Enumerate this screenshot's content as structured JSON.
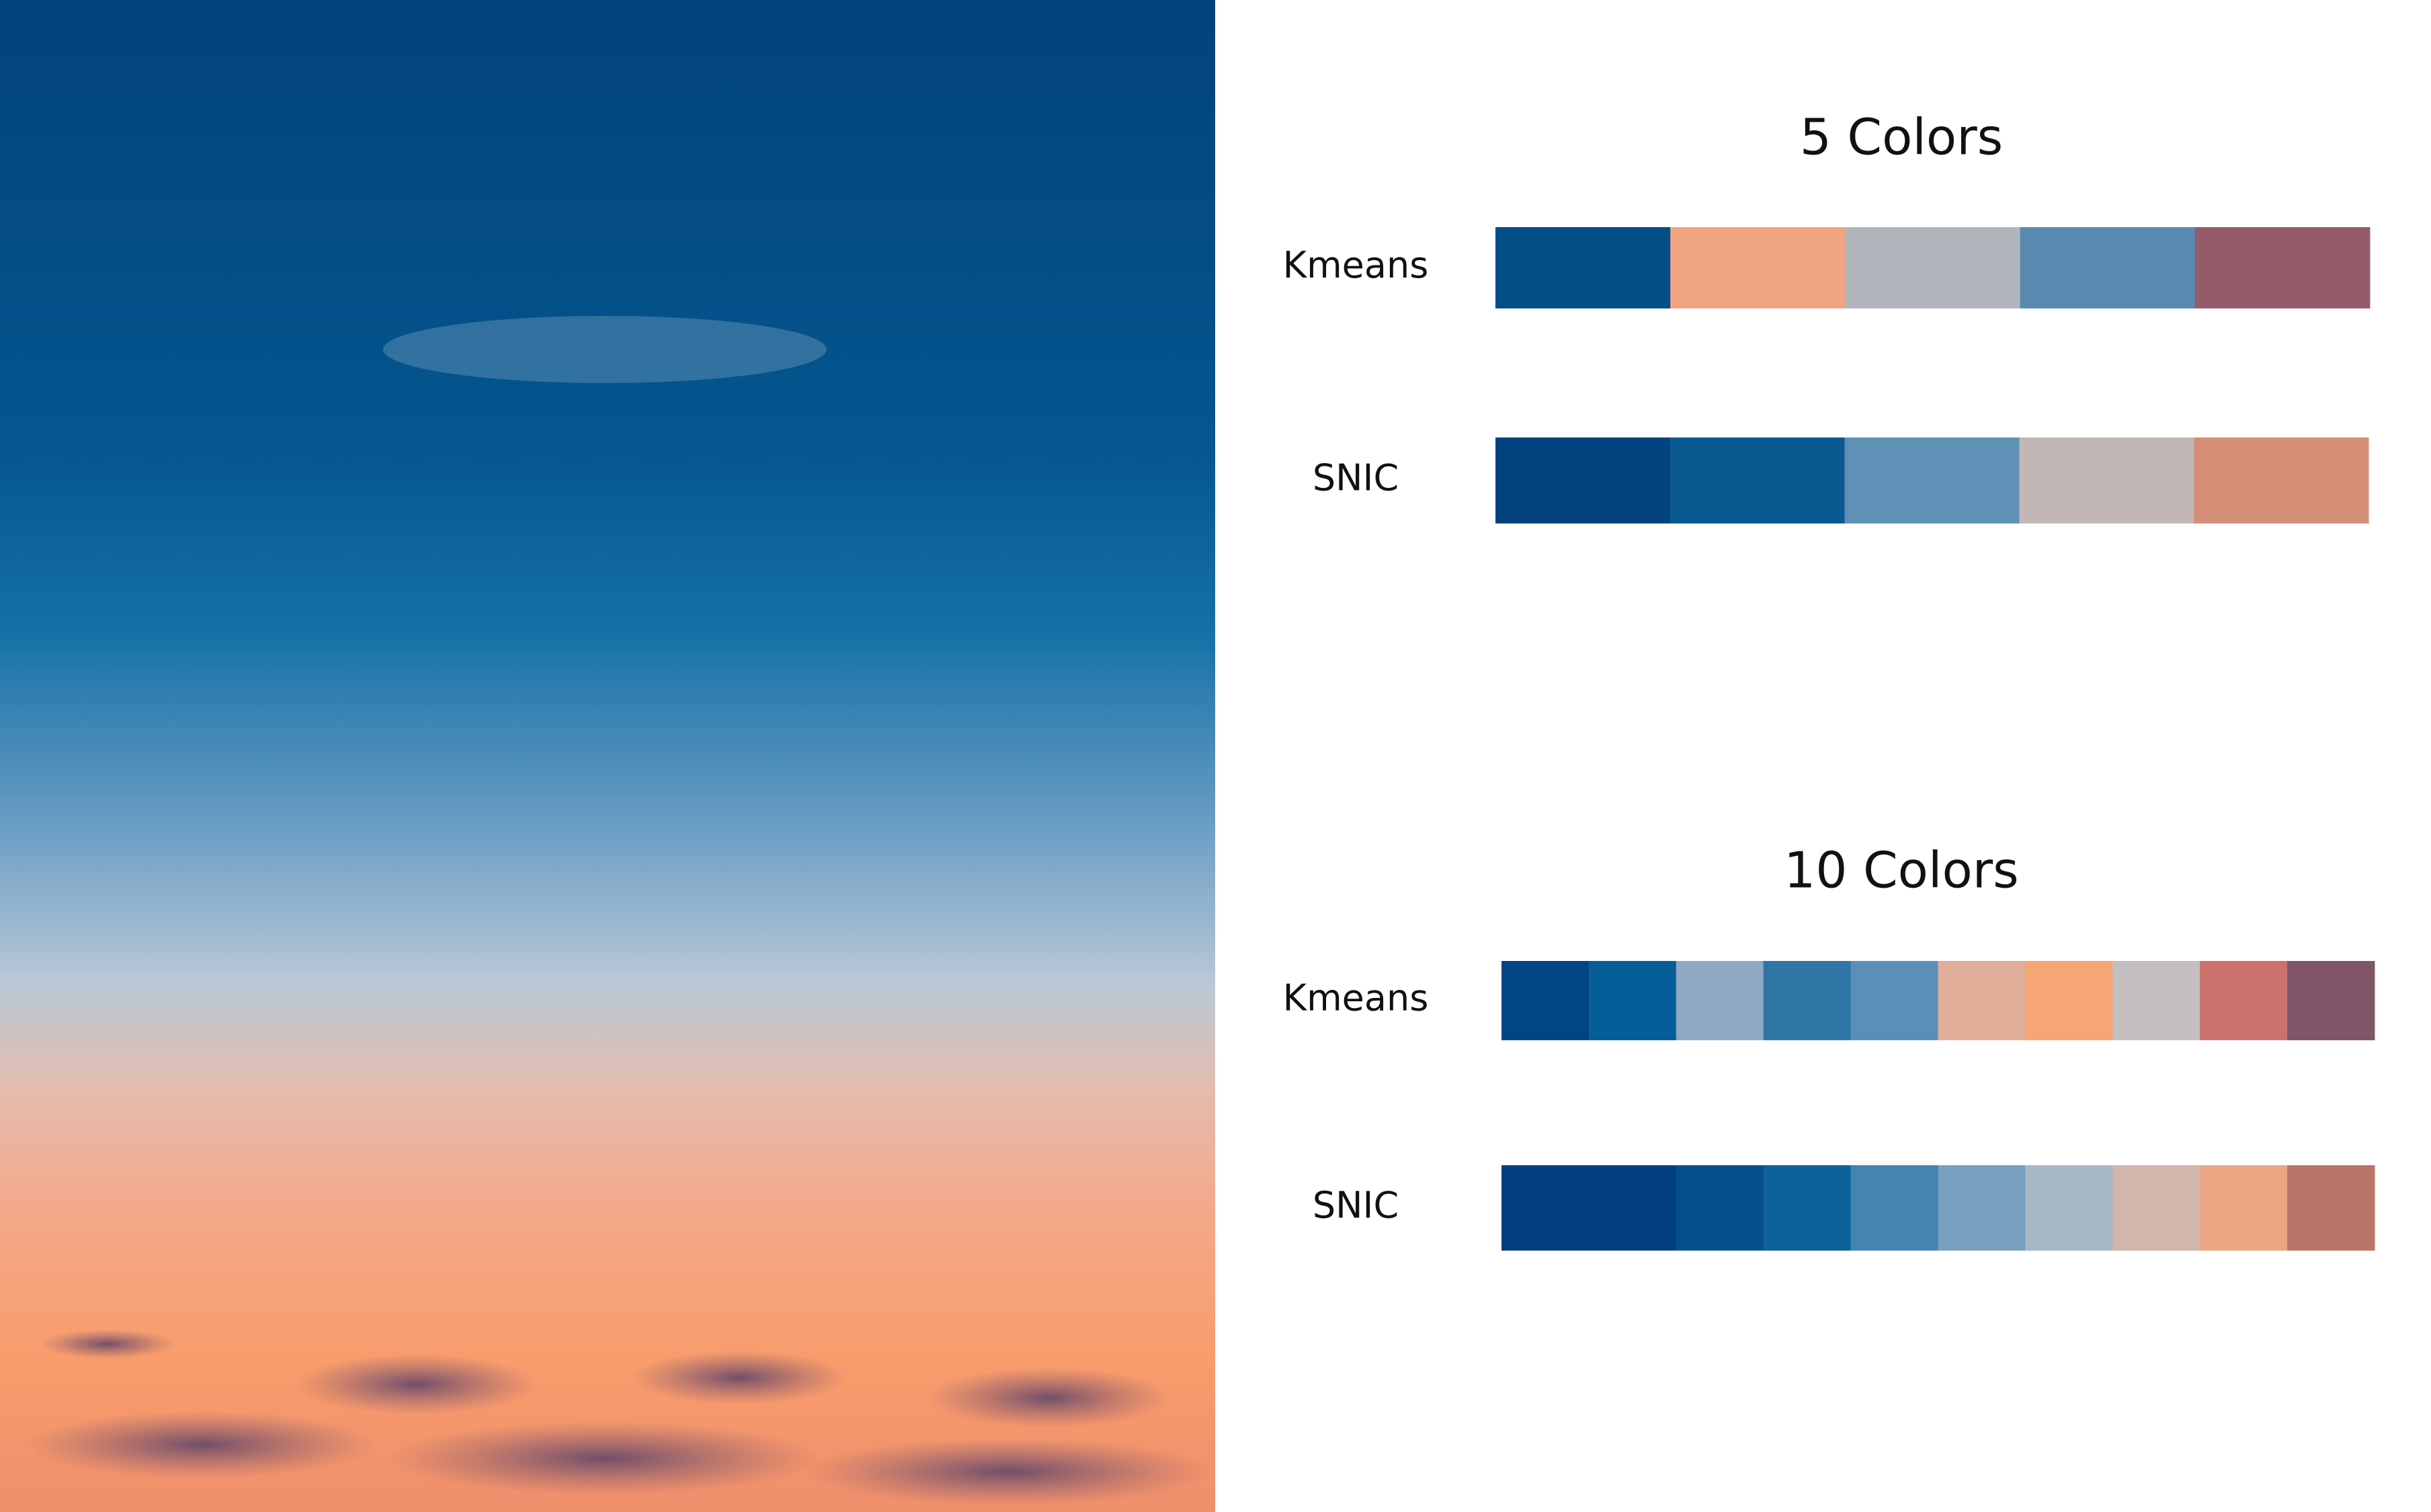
{
  "sections": [
    {
      "title": "5 Colors",
      "rows": [
        {
          "label": "Kmeans",
          "colors": [
            "#044e88",
            "#f1a482",
            "#b1b6bd",
            "#588ab0",
            "#945c6a"
          ]
        },
        {
          "label": "SNIC",
          "colors": [
            "#02437f",
            "#0a5a91",
            "#5f90b5",
            "#c2b7b5",
            "#d48f76"
          ]
        }
      ]
    },
    {
      "title": "10 Colors",
      "rows": [
        {
          "label": "Kmeans",
          "colors": [
            "#024585",
            "#055e97",
            "#8ea9c2",
            "#2f76a7",
            "#5b8fb9",
            "#e0ae99",
            "#f8a575",
            "#c3bfc1",
            "#cd716d",
            "#815568"
          ]
        },
        {
          "label": "SNIC",
          "colors": [
            "#033f7f",
            "#033f7f",
            "#05508a",
            "#0d6299",
            "#4583b0",
            "#79a0c1",
            "#a8b7c6",
            "#d2b5ab",
            "#eba784",
            "#ba7468"
          ]
        }
      ]
    }
  ]
}
